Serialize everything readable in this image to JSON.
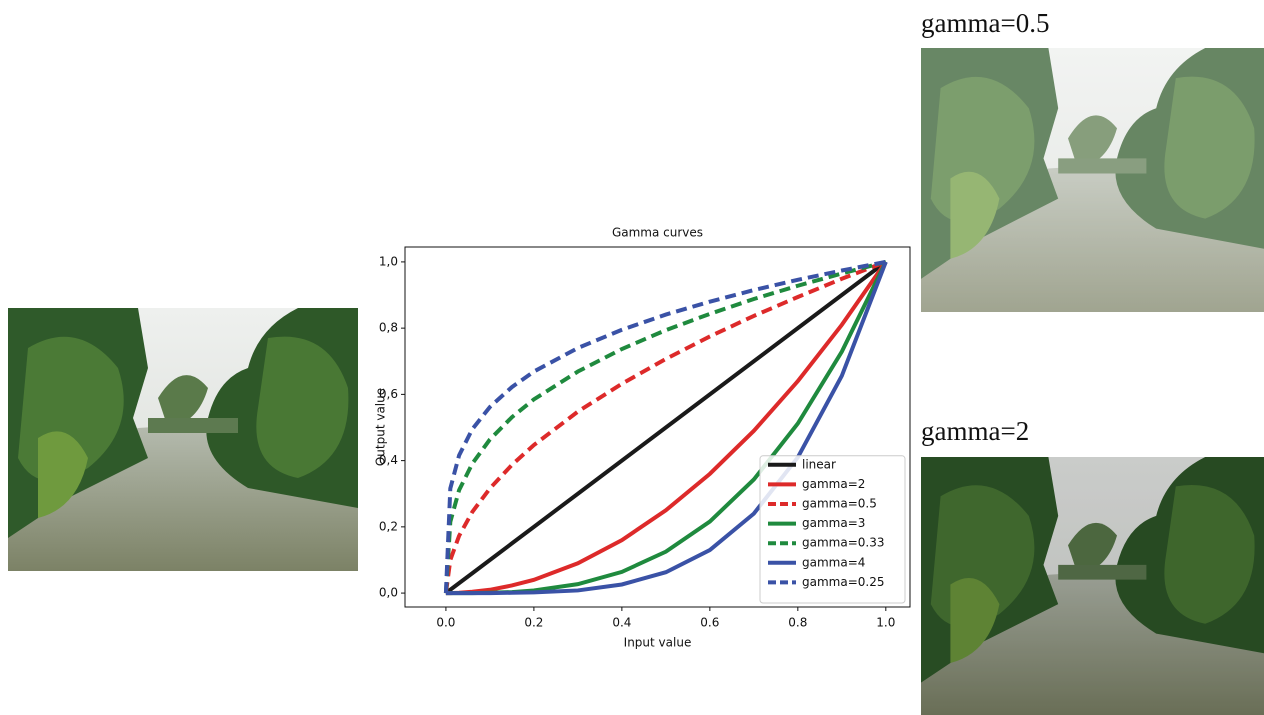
{
  "chart_data": {
    "type": "line",
    "title": "Gamma curves",
    "x_label": "Input value",
    "y_label": "Output value",
    "x": [
      0,
      0.01,
      0.03,
      0.06,
      0.1,
      0.15,
      0.2,
      0.3,
      0.4,
      0.5,
      0.6,
      0.7,
      0.8,
      0.9,
      1.0
    ],
    "series": [
      {
        "name": "linear",
        "color": "#1a1a1a",
        "dashed": false,
        "values": [
          0,
          0.01,
          0.03,
          0.06,
          0.1,
          0.15,
          0.2,
          0.3,
          0.4,
          0.5,
          0.6,
          0.7,
          0.8,
          0.9,
          1.0
        ]
      },
      {
        "name": "gamma=2",
        "color": "#dd2a2a",
        "dashed": false,
        "values": [
          0,
          0,
          0.001,
          0.004,
          0.01,
          0.023,
          0.04,
          0.09,
          0.16,
          0.25,
          0.36,
          0.49,
          0.64,
          0.81,
          1.0
        ]
      },
      {
        "name": "gamma=0.5",
        "color": "#dd2a2a",
        "dashed": true,
        "values": [
          0,
          0.1,
          0.173,
          0.245,
          0.316,
          0.387,
          0.447,
          0.548,
          0.632,
          0.707,
          0.775,
          0.837,
          0.894,
          0.949,
          1.0
        ]
      },
      {
        "name": "gamma=3",
        "color": "#1f8a3e",
        "dashed": false,
        "values": [
          0,
          0,
          0,
          0,
          0.001,
          0.003,
          0.008,
          0.027,
          0.064,
          0.125,
          0.216,
          0.343,
          0.512,
          0.729,
          1.0
        ]
      },
      {
        "name": "gamma=0.33",
        "color": "#1f8a3e",
        "dashed": true,
        "values": [
          0,
          0.215,
          0.311,
          0.391,
          0.464,
          0.531,
          0.585,
          0.669,
          0.737,
          0.794,
          0.843,
          0.888,
          0.928,
          0.965,
          1.0
        ]
      },
      {
        "name": "gamma=4",
        "color": "#3a52a6",
        "dashed": false,
        "values": [
          0,
          0,
          0,
          0,
          0,
          0.001,
          0.002,
          0.008,
          0.026,
          0.063,
          0.13,
          0.24,
          0.41,
          0.656,
          1.0
        ]
      },
      {
        "name": "gamma=0.25",
        "color": "#3a52a6",
        "dashed": true,
        "values": [
          0,
          0.316,
          0.416,
          0.495,
          0.562,
          0.622,
          0.669,
          0.74,
          0.795,
          0.841,
          0.88,
          0.915,
          0.946,
          0.974,
          1.0
        ]
      }
    ],
    "xlim": [
      -0.093,
      1.055
    ],
    "ylim": [
      -0.042,
      1.045
    ],
    "xticks": [
      {
        "value": 0,
        "label": "0.0"
      },
      {
        "value": 0.2,
        "label": "0.2"
      },
      {
        "value": 0.4,
        "label": "0.4"
      },
      {
        "value": 0.6,
        "label": "0.6"
      },
      {
        "value": 0.8,
        "label": "0.8"
      },
      {
        "value": 1,
        "label": "1.0"
      }
    ],
    "yticks": [
      {
        "value": 0,
        "label": "0,0"
      },
      {
        "value": 0.2,
        "label": "0,2"
      },
      {
        "value": 0.4,
        "label": "0,4"
      },
      {
        "value": 0.6,
        "label": "0,6"
      },
      {
        "value": 0.8,
        "label": "0,8"
      },
      {
        "value": 1,
        "label": "1,0"
      }
    ],
    "legend": "lower right",
    "grid": false
  },
  "image_captions": {
    "top": "gamma=0.5",
    "bottom": "gamma=2"
  }
}
